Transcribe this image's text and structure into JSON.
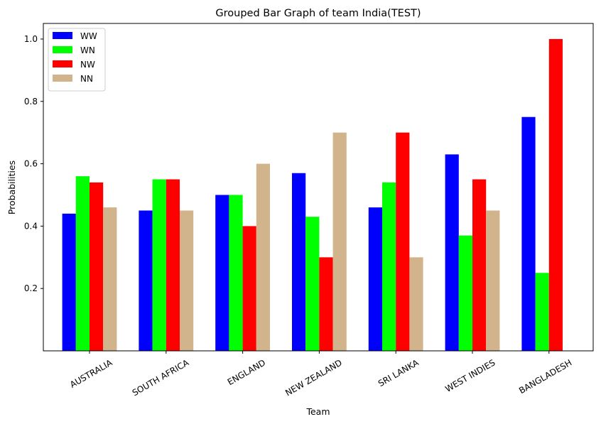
{
  "chart_data": {
    "type": "bar",
    "title": "Grouped Bar Graph of team India(TEST)",
    "xlabel": "Team",
    "ylabel": "Probabilities",
    "categories": [
      "AUSTRALIA",
      "SOUTH AFRICA",
      "ENGLAND",
      "NEW ZEALAND",
      "SRI LANKA",
      "WEST INDIES",
      "BANGLADESH"
    ],
    "series": [
      {
        "name": "WW",
        "color": "#0000ff",
        "values": [
          0.44,
          0.45,
          0.5,
          0.57,
          0.46,
          0.63,
          0.75
        ]
      },
      {
        "name": "WN",
        "color": "#00ff00",
        "values": [
          0.56,
          0.55,
          0.5,
          0.43,
          0.54,
          0.37,
          0.25
        ]
      },
      {
        "name": "NW",
        "color": "#ff0000",
        "values": [
          0.54,
          0.55,
          0.4,
          0.3,
          0.7,
          0.55,
          1.0
        ]
      },
      {
        "name": "NN",
        "color": "#d2b48c",
        "values": [
          0.46,
          0.45,
          0.6,
          0.7,
          0.3,
          0.45,
          0.0
        ]
      }
    ],
    "ylim": [
      0.0,
      1.05
    ],
    "yticks": [
      "0.2",
      "0.4",
      "0.6",
      "0.8",
      "1.0"
    ],
    "grid": false,
    "legend_position": "top-left"
  }
}
